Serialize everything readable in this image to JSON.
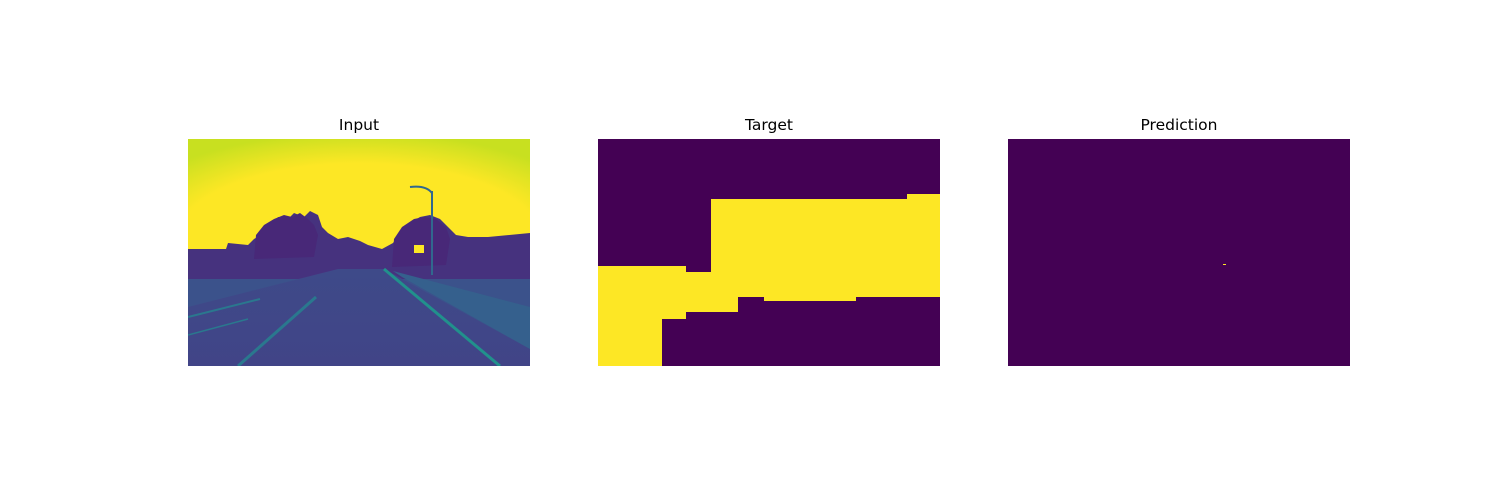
{
  "panels": [
    {
      "title": "Input"
    },
    {
      "title": "Target"
    },
    {
      "title": "Prediction"
    }
  ],
  "colors": {
    "background_low": "#440154",
    "foreground_high": "#fde725",
    "mid_tone": "#3b528b",
    "teal": "#21918c",
    "green": "#5ec962"
  }
}
